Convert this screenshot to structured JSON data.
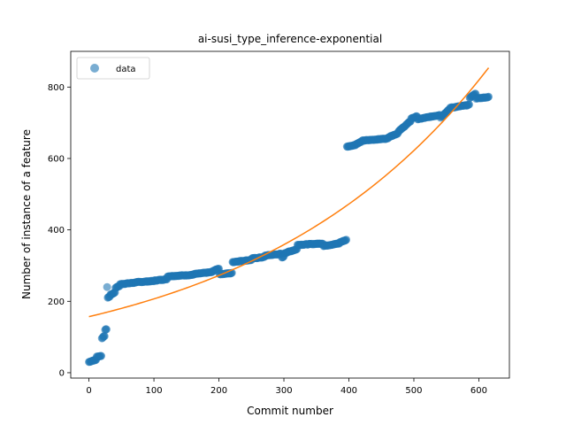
{
  "chart_data": {
    "type": "scatter",
    "title": "ai-susi_type_inference-exponential",
    "xlabel": "Commit number",
    "ylabel": "Number of instance of a feature",
    "xlim": [
      -28,
      647
    ],
    "ylim": [
      -15,
      900
    ],
    "xticks": [
      0,
      100,
      200,
      300,
      400,
      500,
      600
    ],
    "yticks": [
      0,
      200,
      400,
      600,
      800
    ],
    "grid": false,
    "legend": {
      "placement": "upper-left",
      "entries": [
        "data"
      ]
    },
    "colors": {
      "data": "#1f77b4",
      "fit": "#ff7f0e"
    },
    "series": [
      {
        "name": "data",
        "kind": "scatter",
        "segments": [
          {
            "from": 0,
            "to": 3,
            "y0": 30,
            "y1": 32
          },
          {
            "from": 4,
            "to": 11,
            "y0": 33,
            "y1": 36
          },
          {
            "from": 12,
            "to": 19,
            "y0": 45,
            "y1": 47
          },
          {
            "from": 20,
            "to": 24,
            "y0": 97,
            "y1": 103
          },
          {
            "from": 25,
            "to": 27,
            "y0": 120,
            "y1": 122
          },
          {
            "from": 28,
            "to": 28,
            "y0": 240,
            "y1": 240
          },
          {
            "from": 29,
            "to": 32,
            "y0": 210,
            "y1": 214
          },
          {
            "from": 33,
            "to": 40,
            "y0": 218,
            "y1": 225
          },
          {
            "from": 41,
            "to": 47,
            "y0": 238,
            "y1": 243
          },
          {
            "from": 48,
            "to": 70,
            "y0": 248,
            "y1": 252
          },
          {
            "from": 71,
            "to": 100,
            "y0": 253,
            "y1": 257
          },
          {
            "from": 101,
            "to": 120,
            "y0": 258,
            "y1": 262
          },
          {
            "from": 121,
            "to": 160,
            "y0": 270,
            "y1": 274
          },
          {
            "from": 161,
            "to": 190,
            "y0": 276,
            "y1": 282
          },
          {
            "from": 191,
            "to": 200,
            "y0": 285,
            "y1": 292
          },
          {
            "from": 201,
            "to": 220,
            "y0": 276,
            "y1": 279
          },
          {
            "from": 221,
            "to": 250,
            "y0": 310,
            "y1": 316
          },
          {
            "from": 251,
            "to": 270,
            "y0": 320,
            "y1": 324
          },
          {
            "from": 271,
            "to": 296,
            "y0": 328,
            "y1": 333
          },
          {
            "from": 297,
            "to": 300,
            "y0": 322,
            "y1": 326
          },
          {
            "from": 301,
            "to": 320,
            "y0": 335,
            "y1": 346
          },
          {
            "from": 321,
            "to": 360,
            "y0": 358,
            "y1": 362
          },
          {
            "from": 361,
            "to": 385,
            "y0": 355,
            "y1": 362
          },
          {
            "from": 386,
            "to": 396,
            "y0": 365,
            "y1": 372
          },
          {
            "from": 397,
            "to": 410,
            "y0": 633,
            "y1": 638
          },
          {
            "from": 411,
            "to": 420,
            "y0": 640,
            "y1": 648
          },
          {
            "from": 421,
            "to": 460,
            "y0": 650,
            "y1": 656
          },
          {
            "from": 461,
            "to": 475,
            "y0": 660,
            "y1": 670
          },
          {
            "from": 476,
            "to": 495,
            "y0": 675,
            "y1": 705
          },
          {
            "from": 496,
            "to": 505,
            "y0": 712,
            "y1": 718
          },
          {
            "from": 506,
            "to": 540,
            "y0": 710,
            "y1": 722
          },
          {
            "from": 541,
            "to": 555,
            "y0": 715,
            "y1": 738
          },
          {
            "from": 556,
            "to": 585,
            "y0": 742,
            "y1": 750
          },
          {
            "from": 586,
            "to": 595,
            "y0": 770,
            "y1": 782
          },
          {
            "from": 596,
            "to": 615,
            "y0": 768,
            "y1": 772
          }
        ]
      },
      {
        "name": "",
        "kind": "line",
        "model": "exponential",
        "a": 157,
        "b": 0.002754,
        "x_start": 0,
        "x_end": 615
      }
    ]
  }
}
